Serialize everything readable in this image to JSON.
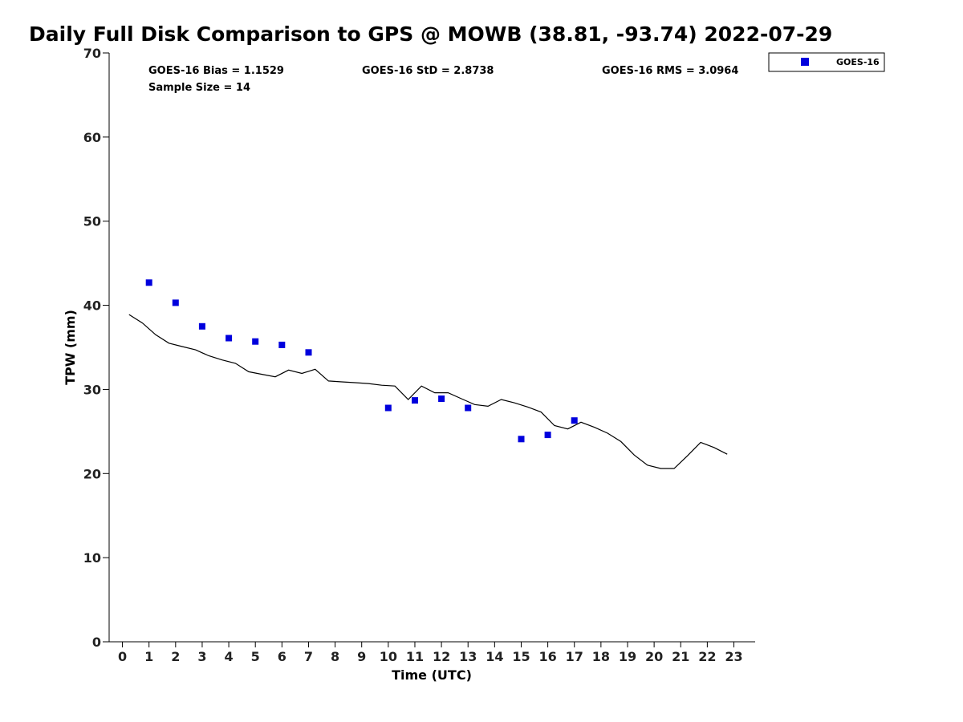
{
  "chart_data": {
    "type": "scatter",
    "title": "Daily Full Disk Comparison to GPS @ MOWB (38.81, -93.74) 2022-07-29",
    "xlabel": "Time (UTC)",
    "ylabel": "TPW (mm)",
    "xlim": [
      -0.5,
      23.8
    ],
    "ylim": [
      0,
      70
    ],
    "xticks": [
      0,
      1,
      2,
      3,
      4,
      5,
      6,
      7,
      8,
      9,
      10,
      11,
      12,
      13,
      14,
      15,
      16,
      17,
      18,
      19,
      20,
      21,
      22,
      23
    ],
    "yticks": [
      0,
      10,
      20,
      30,
      40,
      50,
      60,
      70
    ],
    "grid": false,
    "legend_position": "top-right",
    "stats": {
      "bias": "GOES-16 Bias = 1.1529",
      "std": "GOES-16 StD = 2.8738",
      "rms": "GOES-16 RMS = 3.0964",
      "sample": "Sample Size = 14"
    },
    "series": [
      {
        "name": "GOES-16",
        "kind": "scatter",
        "color": "#0000dd",
        "marker": "square",
        "x": [
          1,
          2,
          3,
          4,
          5,
          6,
          7,
          10,
          11,
          12,
          13,
          15,
          16,
          17
        ],
        "y": [
          42.7,
          40.3,
          37.5,
          36.1,
          35.7,
          35.3,
          34.4,
          27.8,
          28.7,
          28.9,
          27.8,
          24.1,
          24.6,
          26.3
        ]
      },
      {
        "kind": "line",
        "color": "#000000",
        "x": [
          0.25,
          0.75,
          1.25,
          1.75,
          2.25,
          2.75,
          3.25,
          3.75,
          4.25,
          4.75,
          5.25,
          5.75,
          6.25,
          6.75,
          7.25,
          7.75,
          8.25,
          8.75,
          9.25,
          9.75,
          10.25,
          10.75,
          11.25,
          11.75,
          12.25,
          12.75,
          13.25,
          13.75,
          14.25,
          14.75,
          15.25,
          15.75,
          16.25,
          16.75,
          17.25,
          17.75,
          18.25,
          18.75,
          19.25,
          19.75,
          20.25,
          20.75,
          21.25,
          21.75,
          22.25,
          22.75
        ],
        "y": [
          38.9,
          37.9,
          36.5,
          35.5,
          35.1,
          34.7,
          34.0,
          33.5,
          33.1,
          32.1,
          31.8,
          31.5,
          32.3,
          31.9,
          32.4,
          31.0,
          30.9,
          30.8,
          30.7,
          30.5,
          30.4,
          28.8,
          30.4,
          29.6,
          29.6,
          28.9,
          28.2,
          28.0,
          28.8,
          28.4,
          27.9,
          27.3,
          25.7,
          25.3,
          26.1,
          25.5,
          24.8,
          23.8,
          22.2,
          21.0,
          20.6,
          20.6,
          22.1,
          23.7,
          23.1,
          22.3
        ]
      }
    ]
  }
}
